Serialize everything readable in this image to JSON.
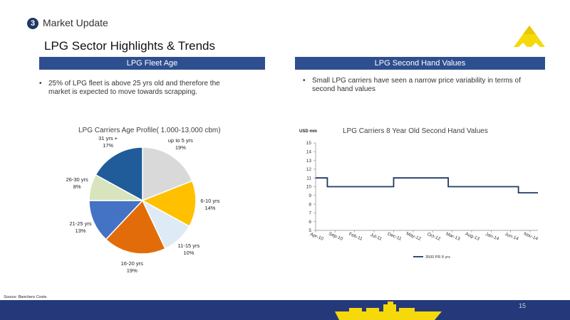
{
  "section": {
    "number": "3",
    "name": "Market Update"
  },
  "title": "LPG Sector Highlights & Trends",
  "left_panel": {
    "header": "LPG Fleet Age",
    "bullet": "25% of LPG fleet is above 25 yrs old and therefore the market is expected to move towards scrapping."
  },
  "right_panel": {
    "header": "LPG Second Hand Values",
    "bullet": "Small LPG carriers have seen a narrow price variability in terms of second hand values"
  },
  "chart_data": [
    {
      "type": "pie",
      "title": "LPG Carriers Age Profile( 1.000-13.000 cbm)",
      "categories": [
        "up to 5 yrs",
        "6-10 yrs",
        "11-15 yrs",
        "16-20 yrs",
        "21-25 yrs",
        "26-30 yrs",
        "31 yrs +"
      ],
      "values": [
        19,
        14,
        10,
        19,
        13,
        8,
        17
      ],
      "value_labels": [
        "19%",
        "14%",
        "10%",
        "19%",
        "13%",
        "8%",
        "17%"
      ],
      "colors": [
        "#d9d9d9",
        "#ffc000",
        "#deebf7",
        "#e36c0a",
        "#4472c4",
        "#d7e4bd",
        "#1f5c99"
      ]
    },
    {
      "type": "line",
      "title": "LPG Carriers 8 Year Old Second Hand Values",
      "ylabel": "USD mm",
      "ylim": [
        5,
        15
      ],
      "yticks": [
        "5",
        "6",
        "7",
        "8",
        "9",
        "10",
        "11",
        "12",
        "13",
        "14",
        "15"
      ],
      "xticks": [
        "Apr-10",
        "Sep-10",
        "Feb-11",
        "Jul-11",
        "Dec-11",
        "May-12",
        "Oct-12",
        "Mar-13",
        "Aug-13",
        "Jan-14",
        "Jun-14",
        "Nov-14"
      ],
      "x_start": "Apr-10",
      "x_end": "Jan-15",
      "series": [
        {
          "name": "3500 PR 8 yrs",
          "color": "#1f3864",
          "points": [
            [
              "Apr-10",
              11
            ],
            [
              "Jul-10",
              11
            ],
            [
              "Jul-10",
              10
            ],
            [
              "Dec-11",
              10
            ],
            [
              "Dec-11",
              11
            ],
            [
              "Feb-13",
              11
            ],
            [
              "Feb-13",
              10
            ],
            [
              "Aug-14",
              10
            ],
            [
              "Aug-14",
              9.3
            ],
            [
              "Jan-15",
              9.3
            ]
          ]
        }
      ]
    }
  ],
  "source": "Source: Banchero Costa",
  "page_number": "15"
}
